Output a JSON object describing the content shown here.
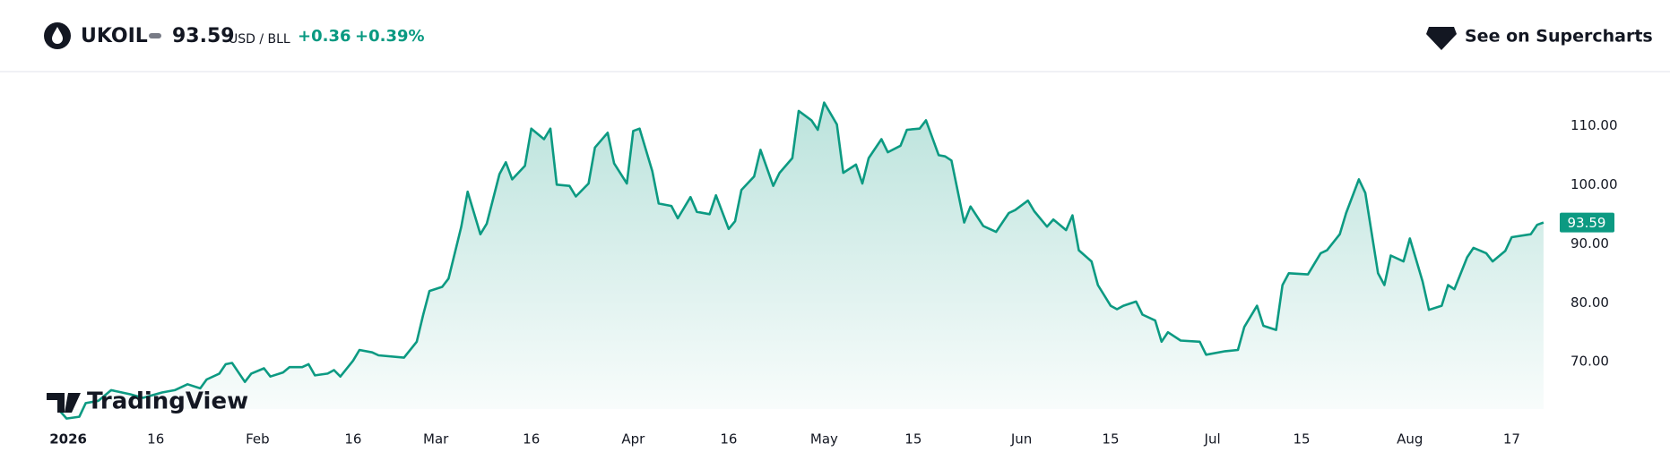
{
  "header": {
    "symbol": "UKOIL",
    "price": "93.59",
    "unit": "USD / BLL",
    "change": "+0.36",
    "change_pct": "+0.39%",
    "link": "See on Supercharts",
    "brand": "TradingView"
  },
  "chart_data": {
    "type": "area",
    "color": "#0c9a82",
    "grid": false,
    "x": [
      0,
      1,
      3,
      4,
      6,
      8,
      11,
      13,
      16,
      18,
      20,
      22,
      23,
      25,
      26,
      27,
      29,
      30,
      32,
      33,
      35,
      36,
      38,
      39,
      40,
      42,
      43,
      44,
      46,
      47,
      49,
      50,
      54,
      56,
      57,
      58,
      60,
      61,
      63,
      64,
      66,
      67,
      69,
      70,
      71,
      73,
      74,
      76,
      77,
      78,
      80,
      81,
      83,
      84,
      86,
      87,
      89,
      90,
      91,
      93,
      94,
      96,
      97,
      99,
      100,
      102,
      103,
      105,
      106,
      107,
      109,
      110,
      112,
      113,
      115,
      116,
      118,
      119,
      120,
      122,
      123,
      125,
      126,
      127,
      129,
      130,
      132,
      133,
      135,
      136,
      138,
      139,
      140,
      142,
      143,
      145,
      147,
      149,
      150,
      152,
      153,
      155,
      156,
      158,
      159,
      160,
      162,
      163,
      165,
      166,
      167,
      169,
      170,
      172,
      173,
      174,
      176,
      179,
      180,
      183,
      185,
      186,
      188,
      189,
      191,
      192,
      193,
      196,
      198,
      199,
      201,
      202,
      204,
      205,
      207,
      208,
      209,
      211,
      212,
      214,
      215,
      217,
      218,
      219,
      221,
      222,
      224,
      225,
      227,
      228,
      231,
      232,
      233
    ],
    "values": [
      61.6,
      60.4,
      60.7,
      63.0,
      63.4,
      65.2,
      64.5,
      63.9,
      64.8,
      65.2,
      66.2,
      65.5,
      67.0,
      68.0,
      69.6,
      69.8,
      66.6,
      68.0,
      68.9,
      67.5,
      68.2,
      69.1,
      69.1,
      69.6,
      67.7,
      68.0,
      68.6,
      67.5,
      70.2,
      72.0,
      71.6,
      71.1,
      70.7,
      73.4,
      77.9,
      82.0,
      82.7,
      84.1,
      92.9,
      98.8,
      91.6,
      93.4,
      101.8,
      103.8,
      100.9,
      103.2,
      109.5,
      107.7,
      109.5,
      100.0,
      99.8,
      98.0,
      100.2,
      106.3,
      108.8,
      103.6,
      100.2,
      109.1,
      109.5,
      102.3,
      96.8,
      96.4,
      94.3,
      97.9,
      95.4,
      95.0,
      98.2,
      92.5,
      93.8,
      99.1,
      101.4,
      105.9,
      99.8,
      102.0,
      104.5,
      112.5,
      110.9,
      109.3,
      113.9,
      110.2,
      102.0,
      103.4,
      100.2,
      104.5,
      107.7,
      105.5,
      106.6,
      109.3,
      109.5,
      110.9,
      105.0,
      104.8,
      104.1,
      93.6,
      96.3,
      93.0,
      92.0,
      95.2,
      95.7,
      97.3,
      95.5,
      92.9,
      94.1,
      92.3,
      94.8,
      88.9,
      87.0,
      83.0,
      79.5,
      78.9,
      79.5,
      80.2,
      78.0,
      77.0,
      73.4,
      75.0,
      73.6,
      73.4,
      71.2,
      71.8,
      72.0,
      75.9,
      79.5,
      76.1,
      75.4,
      83.0,
      85.0,
      84.8,
      88.4,
      88.9,
      91.6,
      95.2,
      100.9,
      98.6,
      85.0,
      83.0,
      88.0,
      87.0,
      90.9,
      83.6,
      78.8,
      79.5,
      83.0,
      82.3,
      87.7,
      89.3,
      88.4,
      87.0,
      88.8,
      91.1,
      91.6,
      93.2,
      93.59
    ],
    "xlim": [
      -2,
      234
    ],
    "xticks": [
      {
        "value": 0,
        "label": "2026"
      },
      {
        "value": 15,
        "label": "16"
      },
      {
        "value": 31,
        "label": "Feb"
      },
      {
        "value": 46,
        "label": "16"
      },
      {
        "value": 59,
        "label": "Mar"
      },
      {
        "value": 74,
        "label": "16"
      },
      {
        "value": 90,
        "label": "Apr"
      },
      {
        "value": 105,
        "label": "16"
      },
      {
        "value": 120,
        "label": "May"
      },
      {
        "value": 134,
        "label": "15"
      },
      {
        "value": 151,
        "label": "Jun"
      },
      {
        "value": 165,
        "label": "15"
      },
      {
        "value": 181,
        "label": "Jul"
      },
      {
        "value": 195,
        "label": "15"
      },
      {
        "value": 212,
        "label": "Aug"
      },
      {
        "value": 228,
        "label": "17"
      }
    ],
    "ylim": [
      62,
      119
    ],
    "yticks": [
      {
        "value": 70,
        "label": "70.00"
      },
      {
        "value": 80,
        "label": "80.00"
      },
      {
        "value": 90,
        "label": "90.00"
      },
      {
        "value": 100,
        "label": "100.00"
      },
      {
        "value": 110,
        "label": "110.00"
      }
    ]
  }
}
